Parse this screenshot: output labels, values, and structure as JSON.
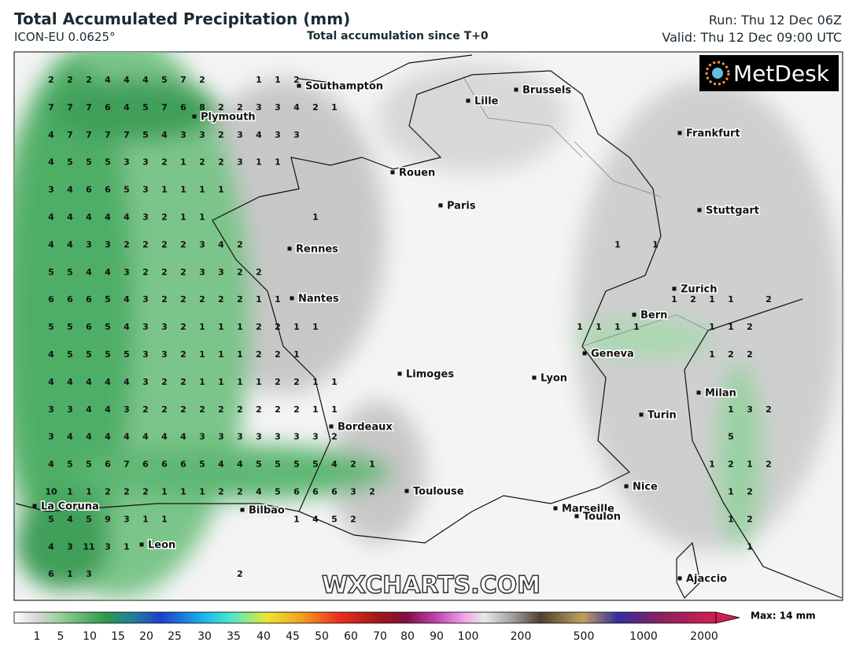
{
  "header": {
    "title": "Total Accumulated Precipitation (mm)",
    "model": "ICON-EU 0.0625°",
    "subtitle": "Total accumulation since T+0",
    "run": "Run: Thu 12 Dec 06Z",
    "valid": "Valid: Thu 12 Dec 09:00 UTC"
  },
  "logo": "MetDesk",
  "watermark": "WXCHARTS.COM",
  "cities": [
    "Southampton",
    "Plymouth",
    "Lille",
    "Brussels",
    "Frankfurt",
    "Rouen",
    "Paris",
    "Stuttgart",
    "Rennes",
    "Nantes",
    "Zurich",
    "Bern",
    "Geneva",
    "Limoges",
    "Lyon",
    "Milan",
    "Bordeaux",
    "Turin",
    "Toulouse",
    "Nice",
    "Marseille",
    "Toulon",
    "La Coruna",
    "Bilbao",
    "Leon",
    "Ajaccio"
  ],
  "west_values": [
    [
      2,
      2,
      2,
      4,
      4,
      4,
      5,
      7,
      2,
      null,
      null,
      1,
      1,
      2
    ],
    [
      7,
      7,
      7,
      6,
      4,
      5,
      7,
      6,
      8,
      2,
      2,
      3,
      3,
      4,
      2,
      1
    ],
    [
      4,
      7,
      7,
      7,
      7,
      5,
      4,
      3,
      3,
      2,
      3,
      4,
      3,
      3
    ],
    [
      4,
      5,
      5,
      5,
      3,
      3,
      2,
      1,
      2,
      2,
      3,
      1,
      1
    ],
    [
      3,
      4,
      6,
      6,
      5,
      3,
      1,
      1,
      1,
      1
    ],
    [
      4,
      4,
      4,
      4,
      4,
      3,
      2,
      1,
      1,
      null,
      null,
      null,
      null,
      null,
      1
    ],
    [
      4,
      4,
      3,
      3,
      2,
      2,
      2,
      2,
      3,
      4,
      2
    ],
    [
      5,
      5,
      4,
      4,
      3,
      2,
      2,
      2,
      3,
      3,
      2,
      2
    ],
    [
      6,
      6,
      6,
      5,
      4,
      3,
      2,
      2,
      2,
      2,
      2,
      1,
      1
    ],
    [
      5,
      5,
      6,
      5,
      4,
      3,
      3,
      2,
      1,
      1,
      1,
      2,
      2,
      1,
      1
    ],
    [
      4,
      5,
      5,
      5,
      5,
      3,
      3,
      2,
      1,
      1,
      1,
      2,
      2,
      1
    ],
    [
      4,
      4,
      4,
      4,
      4,
      3,
      2,
      2,
      1,
      1,
      1,
      1,
      2,
      2,
      1,
      1
    ],
    [
      3,
      3,
      4,
      4,
      3,
      2,
      2,
      2,
      2,
      2,
      2,
      2,
      2,
      2,
      1,
      1
    ],
    [
      3,
      4,
      4,
      4,
      4,
      4,
      4,
      4,
      3,
      3,
      3,
      3,
      3,
      3,
      3,
      2
    ],
    [
      4,
      5,
      5,
      6,
      7,
      6,
      6,
      6,
      5,
      4,
      4,
      5,
      5,
      5,
      5,
      4,
      2,
      1
    ],
    [
      10,
      1,
      1,
      2,
      2,
      2,
      1,
      1,
      1,
      2,
      2,
      4,
      5,
      6,
      6,
      6,
      3,
      2
    ],
    [
      5,
      4,
      5,
      9,
      3,
      1,
      1,
      null,
      null,
      null,
      null,
      null,
      null,
      1,
      4,
      5,
      2
    ],
    [
      4,
      3,
      11,
      3,
      1
    ],
    [
      6,
      1,
      3,
      null,
      null,
      null,
      null,
      null,
      null,
      null,
      2
    ]
  ],
  "east_values": [
    [],
    [],
    [],
    [],
    [],
    [],
    [
      null,
      null,
      1,
      null,
      1
    ],
    [],
    [
      null,
      null,
      null,
      null,
      null,
      1,
      2,
      1,
      1,
      null,
      2
    ],
    [
      1,
      1,
      1,
      1,
      null,
      null,
      null,
      1,
      1,
      2
    ],
    [
      null,
      null,
      null,
      null,
      null,
      null,
      null,
      1,
      2,
      2
    ],
    [],
    [
      null,
      null,
      null,
      null,
      null,
      null,
      null,
      null,
      1,
      3,
      2
    ],
    [
      null,
      null,
      null,
      null,
      null,
      null,
      null,
      null,
      5
    ],
    [
      null,
      null,
      null,
      null,
      null,
      null,
      null,
      1,
      2,
      1,
      2
    ],
    [
      null,
      null,
      null,
      null,
      null,
      null,
      null,
      null,
      1,
      2
    ],
    [
      null,
      null,
      null,
      null,
      null,
      null,
      null,
      null,
      1,
      2
    ],
    [
      null,
      null,
      null,
      null,
      null,
      null,
      null,
      null,
      null,
      1
    ],
    []
  ],
  "legend": {
    "labels": [
      1,
      5,
      10,
      15,
      20,
      25,
      30,
      35,
      40,
      45,
      50,
      60,
      70,
      80,
      90,
      100,
      200,
      500,
      1000,
      2000
    ],
    "max": "Max: 14 mm"
  }
}
